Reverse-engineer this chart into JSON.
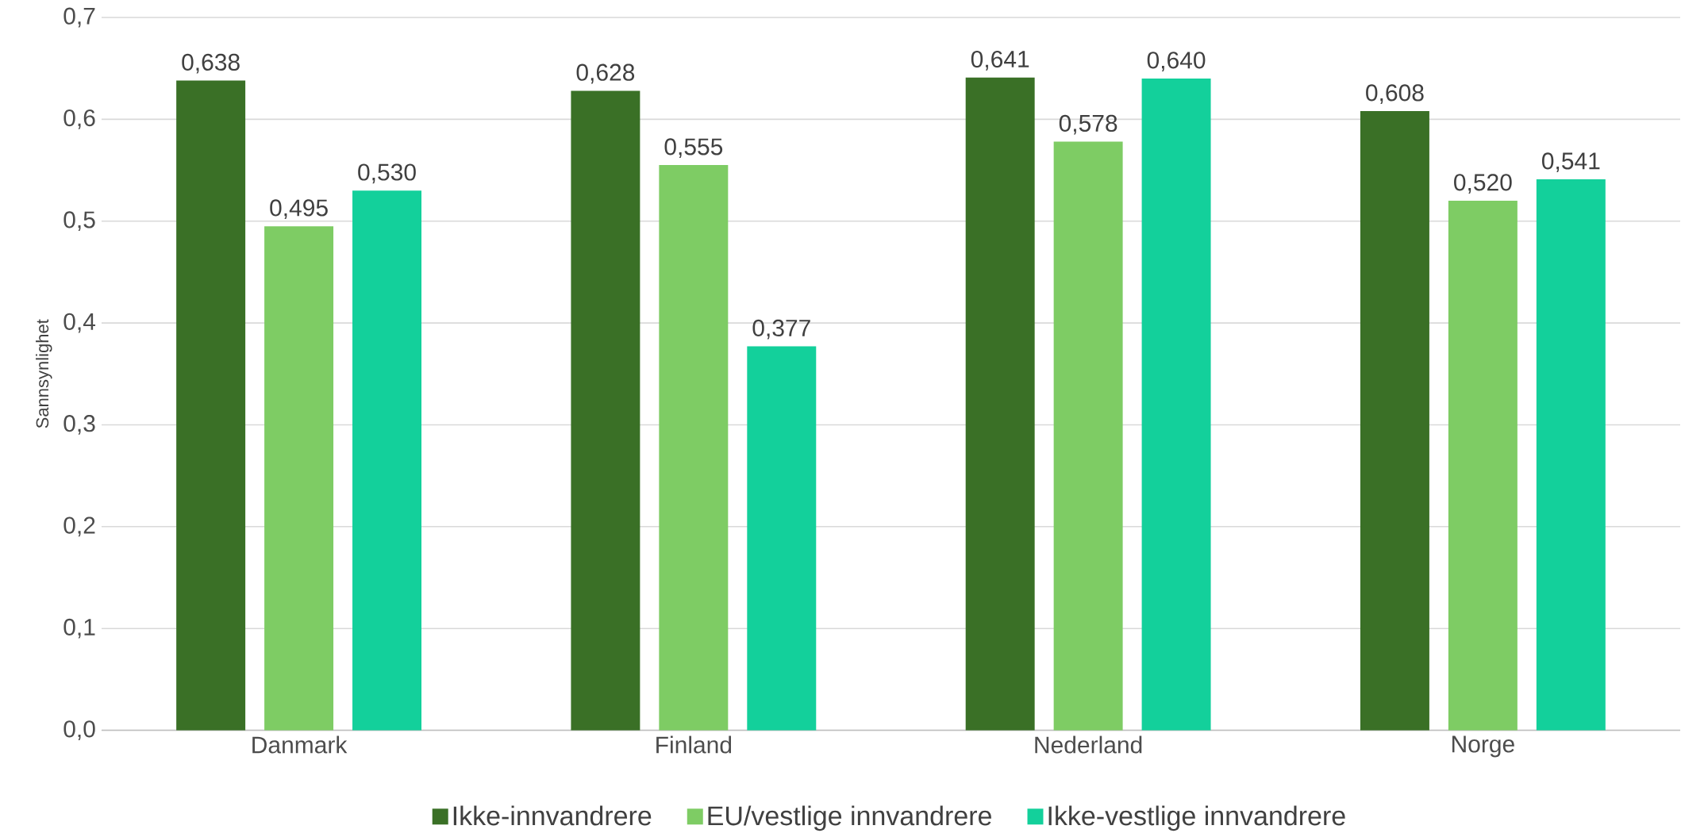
{
  "chart_data": {
    "type": "bar",
    "ylabel": "Sannsynlighet",
    "categories": [
      "Danmark",
      "Finland",
      "Nederland",
      "Norge"
    ],
    "series": [
      {
        "name": "Ikke-innvandrere",
        "color": "#3a7026",
        "values": [
          0.638,
          0.628,
          0.641,
          0.608
        ],
        "value_labels": [
          "0,638",
          "0,628",
          "0,641",
          "0,608"
        ]
      },
      {
        "name": "EU/vestlige  innvandrere",
        "color": "#7ecc64",
        "values": [
          0.495,
          0.555,
          0.578,
          0.52
        ],
        "value_labels": [
          "0,495",
          "0,555",
          "0,578",
          "0,520"
        ]
      },
      {
        "name": "Ikke-vestlige innvandrere",
        "color": "#13d09b",
        "values": [
          0.53,
          0.377,
          0.64,
          0.541
        ],
        "value_labels": [
          "0,530",
          "0,377",
          "0,640",
          "0,541"
        ]
      }
    ],
    "ylim": [
      0,
      0.7
    ],
    "yticks": [
      {
        "value": 0,
        "label": "0,0"
      },
      {
        "value": 0.1,
        "label": "0,1"
      },
      {
        "value": 0.2,
        "label": "0,2"
      },
      {
        "value": 0.3,
        "label": "0,3"
      },
      {
        "value": 0.4,
        "label": "0,4"
      },
      {
        "value": 0.5,
        "label": "0,5"
      },
      {
        "value": 0.6,
        "label": "0,6"
      },
      {
        "value": 0.7,
        "label": "0,7"
      }
    ],
    "grid": "y",
    "legend": "bottom"
  }
}
